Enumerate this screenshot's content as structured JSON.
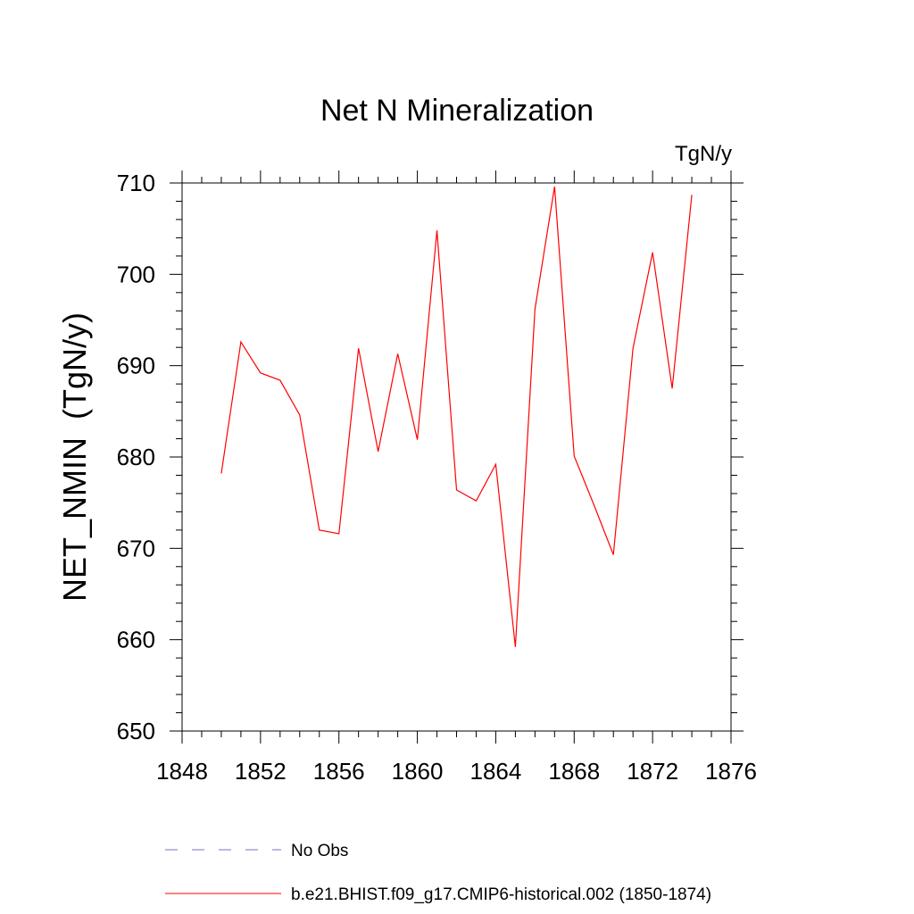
{
  "chart_data": {
    "type": "line",
    "title": "Net N Mineralization",
    "units_label": "TgN/y",
    "ylabel": "NET_NMIN  (TgN/y)",
    "xlabel": "",
    "xlim": [
      1848,
      1876
    ],
    "ylim": [
      650,
      710
    ],
    "x_ticks": [
      1848,
      1852,
      1856,
      1860,
      1864,
      1868,
      1872,
      1876
    ],
    "y_ticks": [
      650,
      660,
      670,
      680,
      690,
      700,
      710
    ],
    "x_minor_step": 1,
    "y_minor_step": 2,
    "grid": false,
    "series": [
      {
        "name": "b.e21.BHIST.f09_g17.CMIP6-historical.002 (1850-1874)",
        "color": "#ff0000",
        "style": "solid",
        "x": [
          1850,
          1851,
          1852,
          1853,
          1854,
          1855,
          1856,
          1857,
          1858,
          1859,
          1860,
          1861,
          1862,
          1863,
          1864,
          1865,
          1866,
          1867,
          1868,
          1869,
          1870,
          1871,
          1872,
          1873,
          1874
        ],
        "values": [
          678.2,
          692.6,
          689.2,
          688.4,
          684.6,
          672.0,
          671.6,
          691.9,
          680.6,
          691.3,
          681.9,
          704.8,
          676.4,
          675.2,
          679.2,
          659.2,
          696.2,
          709.6,
          680.1,
          674.8,
          669.3,
          691.9,
          702.4,
          687.5,
          708.7
        ]
      }
    ],
    "legend": [
      {
        "label": "No Obs",
        "color": "#7b6fc9",
        "style": "dashed"
      },
      {
        "label": "b.e21.BHIST.f09_g17.CMIP6-historical.002 (1850-1874)",
        "color": "#ff0000",
        "style": "solid"
      }
    ],
    "legend_position": "bottom"
  }
}
